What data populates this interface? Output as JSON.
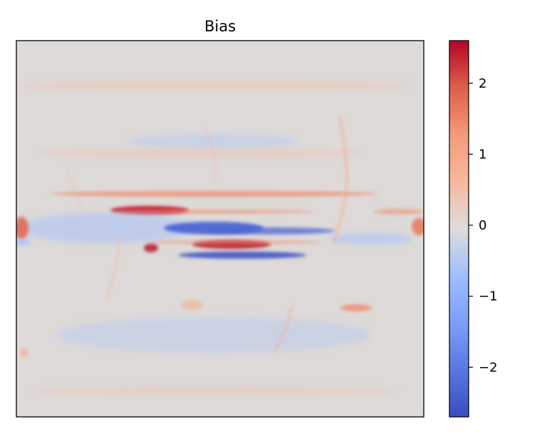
{
  "chart_data": {
    "type": "heatmap",
    "title": "Bias",
    "xlabel": "",
    "ylabel": "",
    "colormap": "coolwarm",
    "colorbar": {
      "vmin": -2.7,
      "vmax": 2.6,
      "ticks": [
        2,
        1,
        0,
        -1,
        -2
      ],
      "tick_labels": [
        "2",
        "1",
        "0",
        "−1",
        "−2"
      ]
    },
    "colors": {
      "min": "#3b4cc0",
      "mid": "#dddddd",
      "max": "#b40426"
    },
    "grid": false,
    "x_ticks_shown": false,
    "y_ticks_shown": false,
    "features": [
      {
        "name": "background",
        "value": 0.15
      },
      {
        "name": "upper-warm-band",
        "value": 0.5
      },
      {
        "name": "north-warm-band",
        "value": 1.4
      },
      {
        "name": "north-hotspot",
        "value": 2.4
      },
      {
        "name": "central-cold-band",
        "value": -2.3
      },
      {
        "name": "south-warm-band",
        "value": 2.5
      },
      {
        "name": "south-cold-band",
        "value": -2.6
      },
      {
        "name": "left-edge-warm",
        "value": 1.8
      },
      {
        "name": "right-edge-warm",
        "value": 1.6
      },
      {
        "name": "lower-right-warm",
        "value": 1.4
      },
      {
        "name": "lower-warm-streak",
        "value": 0.8
      },
      {
        "name": "lower-cool-patch",
        "value": -0.6
      }
    ]
  }
}
